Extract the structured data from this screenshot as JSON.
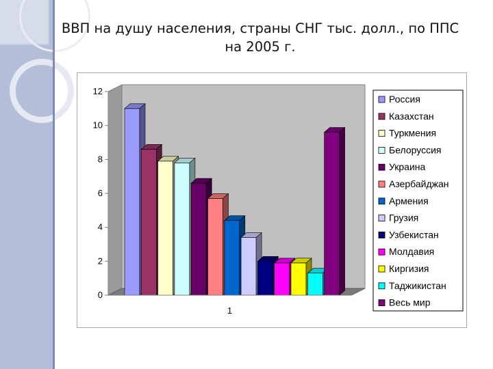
{
  "slide": {
    "title": "ВВП на душу населения, страны СНГ тыс. долл., по ППС на 2005 г."
  },
  "chart_data": {
    "type": "bar",
    "title": "ВВП на душу населения, страны СНГ тыс. долл., по ППС на 2005 г.",
    "categories": [
      "1"
    ],
    "ylim": [
      0,
      12
    ],
    "yticks": [
      "0",
      "2",
      "4",
      "6",
      "8",
      "10",
      "12"
    ],
    "grid": false,
    "legend_position": "right",
    "series": [
      {
        "name": "Россия",
        "values": [
          11.0
        ],
        "color": "#9999ff"
      },
      {
        "name": "Казахстан",
        "values": [
          8.6
        ],
        "color": "#993366"
      },
      {
        "name": "Туркмения",
        "values": [
          7.9
        ],
        "color": "#ffffcc"
      },
      {
        "name": "Белоруссия",
        "values": [
          7.8
        ],
        "color": "#ccffff"
      },
      {
        "name": "Украина",
        "values": [
          6.6
        ],
        "color": "#660066"
      },
      {
        "name": "Азербайджан",
        "values": [
          5.7
        ],
        "color": "#ff8080"
      },
      {
        "name": "Армения",
        "values": [
          4.4
        ],
        "color": "#0066cc"
      },
      {
        "name": "Грузия",
        "values": [
          3.4
        ],
        "color": "#ccccff"
      },
      {
        "name": "Узбекистан",
        "values": [
          2.0
        ],
        "color": "#000080"
      },
      {
        "name": "Молдавия",
        "values": [
          1.9
        ],
        "color": "#ff00ff"
      },
      {
        "name": "Киргизия",
        "values": [
          1.9
        ],
        "color": "#ffff00"
      },
      {
        "name": "Таджикистан",
        "values": [
          1.3
        ],
        "color": "#00ffff"
      },
      {
        "name": "Весь мир",
        "values": [
          9.6
        ],
        "color": "#800080"
      }
    ]
  }
}
